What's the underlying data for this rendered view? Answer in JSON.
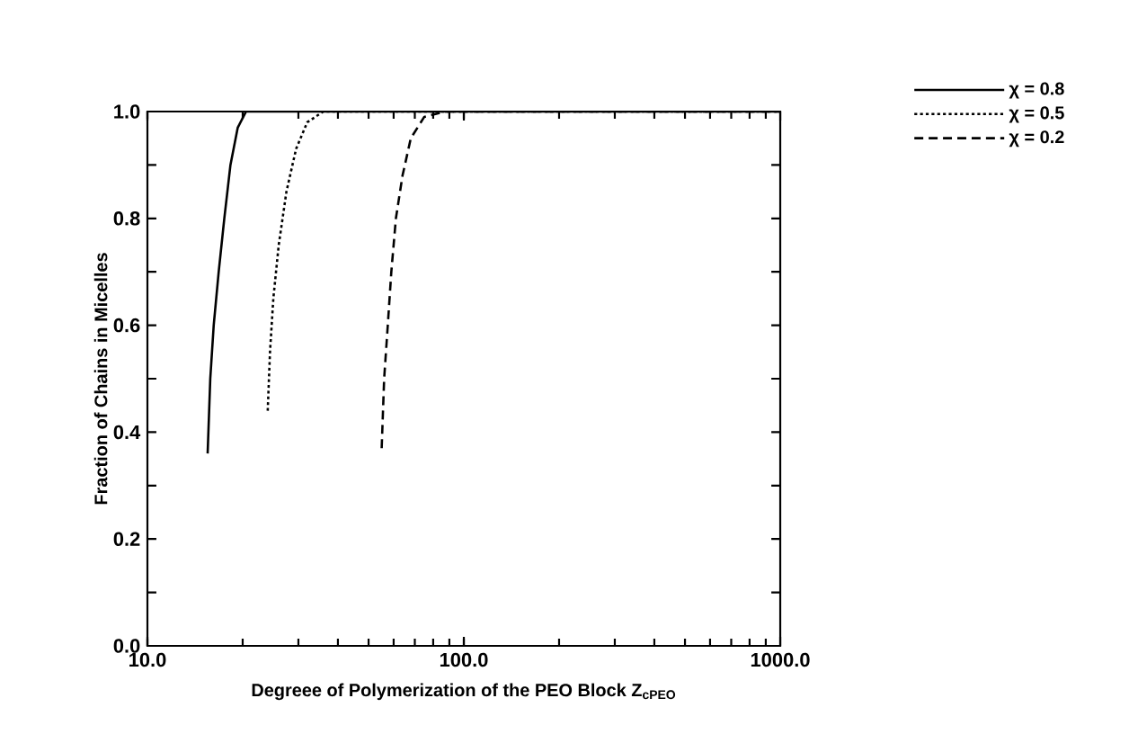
{
  "chart_data": {
    "type": "line",
    "xlabel": "Degreee of Polymerization of the PEO Block Z$_{cPEO}$",
    "ylabel": "Fraction of Chains in Micelles",
    "log": "x",
    "legend": "top right",
    "xlim": [
      10,
      1000
    ],
    "ylim": [
      0,
      1.0
    ],
    "xticks": [
      {
        "value": 10,
        "label": "10.0"
      },
      {
        "value": 100,
        "label": "100.0"
      },
      {
        "value": 1000,
        "label": "1000.0"
      }
    ],
    "yticks": [
      {
        "value": 0,
        "label": "0.0"
      },
      {
        "value": 0.1,
        "label": null
      },
      {
        "value": 0.2,
        "label": "0.2"
      },
      {
        "value": 0.3,
        "label": null
      },
      {
        "value": 0.4,
        "label": "0.4"
      },
      {
        "value": 0.5,
        "label": null
      },
      {
        "value": 0.6,
        "label": "0.6"
      },
      {
        "value": 0.7,
        "label": null
      },
      {
        "value": 0.8,
        "label": "0.8"
      },
      {
        "value": 0.9,
        "label": null
      },
      {
        "value": 1.0,
        "label": "1.0"
      }
    ],
    "series": [
      {
        "name": "χ = 0.8",
        "color": "#000000",
        "line_style": "solid",
        "x": [
          15.5,
          15.8,
          16.2,
          16.8,
          17.5,
          18.3,
          19.3,
          20.5,
          1000
        ],
        "values": [
          0.36,
          0.5,
          0.6,
          0.7,
          0.8,
          0.9,
          0.97,
          1.0,
          1.0
        ]
      },
      {
        "name": "χ = 0.5",
        "color": "#000000",
        "line_style": "dotted",
        "x": [
          24,
          24.4,
          25,
          26,
          27.5,
          29.5,
          32,
          36,
          1000
        ],
        "values": [
          0.44,
          0.55,
          0.65,
          0.75,
          0.85,
          0.93,
          0.98,
          1.0,
          1.0
        ]
      },
      {
        "name": "χ = 0.2",
        "color": "#000000",
        "line_style": "dashed",
        "x": [
          55,
          56,
          57.5,
          59,
          61,
          64,
          68,
          75,
          87,
          1000
        ],
        "values": [
          0.37,
          0.5,
          0.6,
          0.7,
          0.8,
          0.88,
          0.95,
          0.99,
          1.0,
          1.0
        ]
      }
    ]
  }
}
